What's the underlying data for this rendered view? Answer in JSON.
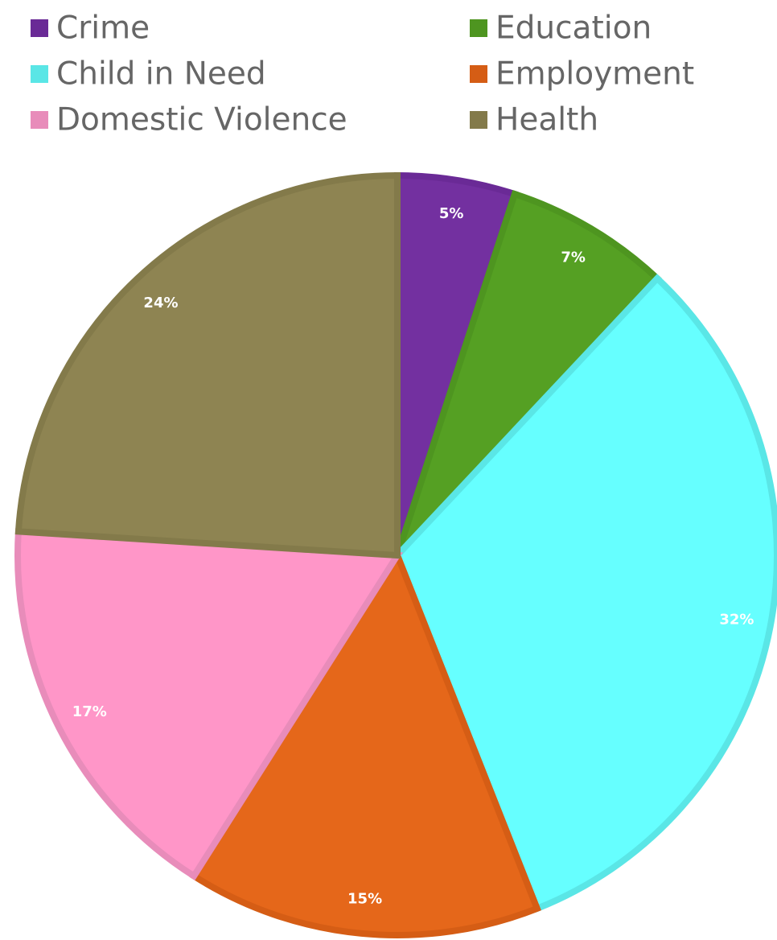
{
  "chart_data": {
    "type": "pie",
    "categories": [
      "Crime",
      "Education",
      "Child in Need",
      "Employment",
      "Domestic Violence",
      "Health"
    ],
    "values": [
      5,
      7,
      32,
      15,
      17,
      24
    ],
    "value_labels": [
      "5%",
      "7%",
      "32%",
      "15%",
      "17%",
      "24%"
    ],
    "colors": [
      "#7330a0",
      "#55a023",
      "#66ffff",
      "#e5671a",
      "#ff96c8",
      "#8e8452"
    ],
    "border_colors": [
      "#6a2a96",
      "#4e9520",
      "#5ae6e6",
      "#d55d15",
      "#e88cba",
      "#837a4a"
    ],
    "legend": "top"
  }
}
